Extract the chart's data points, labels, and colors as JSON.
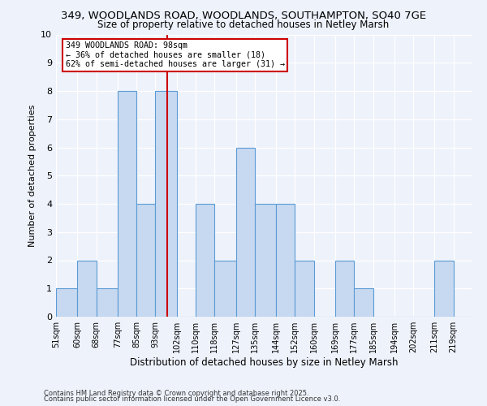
{
  "title": "349, WOODLANDS ROAD, WOODLANDS, SOUTHAMPTON, SO40 7GE",
  "subtitle": "Size of property relative to detached houses in Netley Marsh",
  "xlabel": "Distribution of detached houses by size in Netley Marsh",
  "ylabel": "Number of detached properties",
  "bin_labels": [
    "51sqm",
    "60sqm",
    "68sqm",
    "77sqm",
    "85sqm",
    "93sqm",
    "102sqm",
    "110sqm",
    "118sqm",
    "127sqm",
    "135sqm",
    "144sqm",
    "152sqm",
    "160sqm",
    "169sqm",
    "177sqm",
    "185sqm",
    "194sqm",
    "202sqm",
    "211sqm",
    "219sqm"
  ],
  "bin_edges": [
    51,
    60,
    68,
    77,
    85,
    93,
    102,
    110,
    118,
    127,
    135,
    144,
    152,
    160,
    169,
    177,
    185,
    194,
    202,
    211,
    219
  ],
  "bar_heights": [
    1,
    2,
    1,
    8,
    4,
    8,
    0,
    4,
    2,
    6,
    4,
    4,
    2,
    0,
    2,
    1,
    0,
    0,
    0,
    2,
    0
  ],
  "bar_color": "#c7d9f0",
  "bar_edge_color": "#5b9bd5",
  "property_line_x": 98,
  "annotation_title": "349 WOODLANDS ROAD: 98sqm",
  "annotation_line1": "← 36% of detached houses are smaller (18)",
  "annotation_line2": "62% of semi-detached houses are larger (31) →",
  "annotation_box_color": "#ffffff",
  "annotation_box_edge": "#cc0000",
  "vline_color": "#cc0000",
  "ylim": [
    0,
    10
  ],
  "footer1": "Contains HM Land Registry data © Crown copyright and database right 2025.",
  "footer2": "Contains public sector information licensed under the Open Government Licence v3.0.",
  "background_color": "#eef2fb"
}
